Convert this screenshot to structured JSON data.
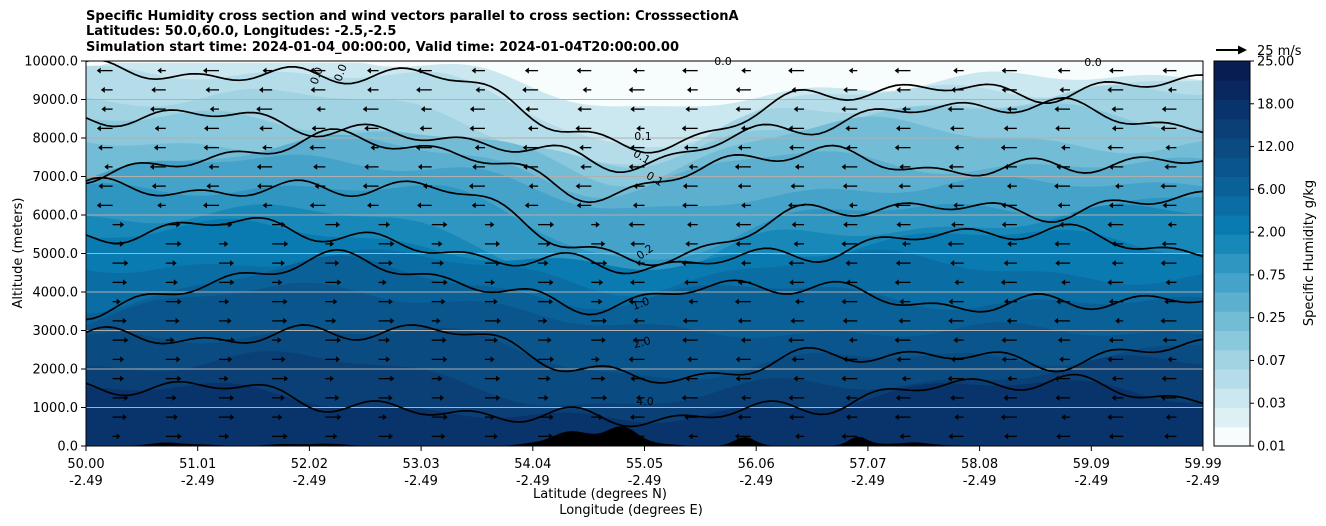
{
  "chart_data": {
    "type": "contourf",
    "title_lines": [
      "Specific Humidity cross section and wind vectors parallel to cross section: CrosssectionA",
      "Latitudes: 50.0,60.0, Longitudes: -2.5,-2.5",
      "Simulation start time: 2024-01-04_00:00:00, Valid time: 2024-01-04T20:00:00.00"
    ],
    "xlabel_lines": [
      "Latitude (degrees N)",
      "Longitude (degrees E)"
    ],
    "ylabel": "Altitude (meters)",
    "x_ticks": [
      {
        "lat": "50.00",
        "lon": "-2.49"
      },
      {
        "lat": "51.01",
        "lon": "-2.49"
      },
      {
        "lat": "52.02",
        "lon": "-2.49"
      },
      {
        "lat": "53.03",
        "lon": "-2.49"
      },
      {
        "lat": "54.04",
        "lon": "-2.49"
      },
      {
        "lat": "55.05",
        "lon": "-2.49"
      },
      {
        "lat": "56.06",
        "lon": "-2.49"
      },
      {
        "lat": "57.07",
        "lon": "-2.49"
      },
      {
        "lat": "58.08",
        "lon": "-2.49"
      },
      {
        "lat": "59.09",
        "lon": "-2.49"
      },
      {
        "lat": "59.99",
        "lon": "-2.49"
      }
    ],
    "y_ticks": [
      "0.0",
      "1000.0",
      "2000.0",
      "3000.0",
      "4000.0",
      "5000.0",
      "6000.0",
      "7000.0",
      "8000.0",
      "9000.0",
      "10000.0"
    ],
    "ylim": [
      0,
      10000
    ],
    "xlim": [
      50.0,
      59.99
    ],
    "grid": "horizontal",
    "colorbar": {
      "label": "Specific Humidity g/kg",
      "tick_labels": [
        "0.01",
        "0.03",
        "0.07",
        "0.25",
        "0.75",
        "2.00",
        "6.00",
        "12.00",
        "18.00",
        "25.00"
      ],
      "palette": [
        "#f7fcfd",
        "#dff0f4",
        "#cbe7ef",
        "#b5dde9",
        "#a1d3e3",
        "#8ac8dd",
        "#73bcd6",
        "#5cafcf",
        "#45a2c8",
        "#2f95c1",
        "#1888b9",
        "#0a7bb0",
        "#0a6da3",
        "#0a6198",
        "#0a568c",
        "#0a4b81",
        "#0a4076",
        "#08336b",
        "#08285f",
        "#081d52"
      ]
    },
    "contour_labels": [
      {
        "text": "0.0",
        "value": 0.0
      },
      {
        "text": "0.0",
        "value": 0.0
      },
      {
        "text": "0.0",
        "value": 0.0
      },
      {
        "text": "0.0",
        "value": 0.0
      },
      {
        "text": "0.1",
        "value": 0.1
      },
      {
        "text": "0.1",
        "value": 0.1
      },
      {
        "text": "0.1",
        "value": 0.1
      },
      {
        "text": "0.2",
        "value": 0.2
      },
      {
        "text": "1.0",
        "value": 1.0
      },
      {
        "text": "2.0",
        "value": 2.0
      },
      {
        "text": "4.0",
        "value": 4.0
      }
    ],
    "quiver_key": {
      "label": "25 m/s",
      "speed": 25
    }
  }
}
